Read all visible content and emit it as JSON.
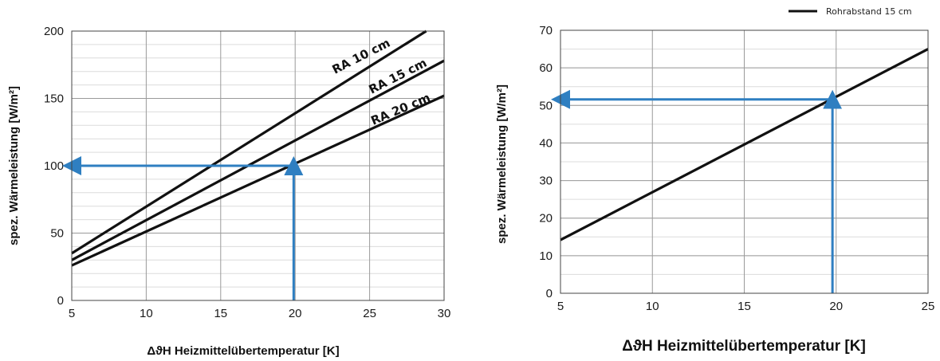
{
  "colors": {
    "curve": "#111111",
    "arrow": "#2f7fc1",
    "grid_major": "#9a9a9a",
    "grid_minor": "#dcdcdc"
  },
  "chart_data": [
    {
      "type": "line",
      "xlabel": "ΔϑH Heizmittelübertemperatur [K]",
      "ylabel": "spez. Wärmeleistung [W/m²]",
      "xlim": [
        5,
        30
      ],
      "ylim": [
        0,
        200
      ],
      "xticks": [
        5,
        10,
        15,
        20,
        25,
        30
      ],
      "yticks": [
        0,
        50,
        100,
        150,
        200
      ],
      "grid": true,
      "series": [
        {
          "name": "RA 10 cm",
          "x": [
            5,
            28.8
          ],
          "y": [
            35,
            200
          ]
        },
        {
          "name": "RA 15 cm",
          "x": [
            5,
            30
          ],
          "y": [
            30,
            178
          ]
        },
        {
          "name": "RA 20 cm",
          "x": [
            5,
            30
          ],
          "y": [
            26,
            152
          ]
        }
      ],
      "annotations": [
        {
          "type": "arrow",
          "from": [
            19.9,
            0
          ],
          "to": [
            19.9,
            100
          ]
        },
        {
          "type": "arrow",
          "from": [
            19.9,
            100
          ],
          "to": [
            5,
            100
          ]
        }
      ]
    },
    {
      "type": "line",
      "xlabel": "ΔϑH Heizmittelübertemperatur [K]",
      "ylabel": "spez. Wärmeleistung [W/m²]",
      "xlim": [
        5,
        25
      ],
      "ylim": [
        0,
        70
      ],
      "xticks": [
        5,
        10,
        15,
        20,
        25
      ],
      "yticks": [
        0,
        10,
        20,
        30,
        40,
        50,
        60,
        70
      ],
      "grid": true,
      "legend": "top-right",
      "series": [
        {
          "name": "Rohrabstand 15 cm",
          "x": [
            5,
            25
          ],
          "y": [
            14.2,
            65
          ]
        }
      ],
      "annotations": [
        {
          "type": "arrow",
          "from": [
            19.8,
            0
          ],
          "to": [
            19.8,
            51.6
          ]
        },
        {
          "type": "arrow",
          "from": [
            19.8,
            51.6
          ],
          "to": [
            5,
            51.6
          ]
        }
      ]
    }
  ]
}
